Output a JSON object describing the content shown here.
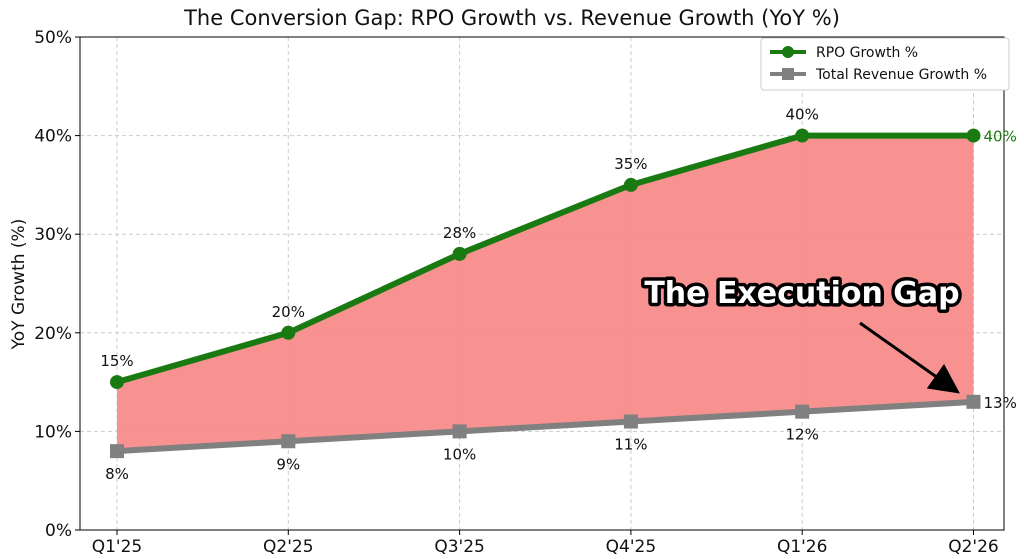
{
  "chart_data": {
    "type": "line",
    "title": "The Conversion Gap: RPO Growth vs. Revenue Growth (YoY %)",
    "xlabel": "",
    "ylabel": "YoY Growth (%)",
    "categories": [
      "Q1'25",
      "Q2'25",
      "Q3'25",
      "Q4'25",
      "Q1'26",
      "Q2'26"
    ],
    "ylim": [
      0,
      50
    ],
    "yticks": [
      "0%",
      "10%",
      "20%",
      "30%",
      "40%",
      "50%"
    ],
    "grid": true,
    "legend_position": "top-right",
    "series": [
      {
        "name": "RPO Growth %",
        "values": [
          15,
          20,
          28,
          35,
          40,
          40
        ],
        "labels": [
          "15%",
          "20%",
          "28%",
          "35%",
          "40%",
          "40%"
        ],
        "color": "#1a7a12",
        "marker": "circle"
      },
      {
        "name": "Total Revenue Growth %",
        "values": [
          8,
          9,
          10,
          11,
          12,
          13
        ],
        "labels": [
          "8%",
          "9%",
          "10%",
          "11%",
          "12%",
          "13%"
        ],
        "color": "#808080",
        "marker": "square"
      }
    ],
    "fill_between": {
      "color": "#f78c8a"
    },
    "annotation": {
      "text": "The Execution Gap"
    }
  }
}
